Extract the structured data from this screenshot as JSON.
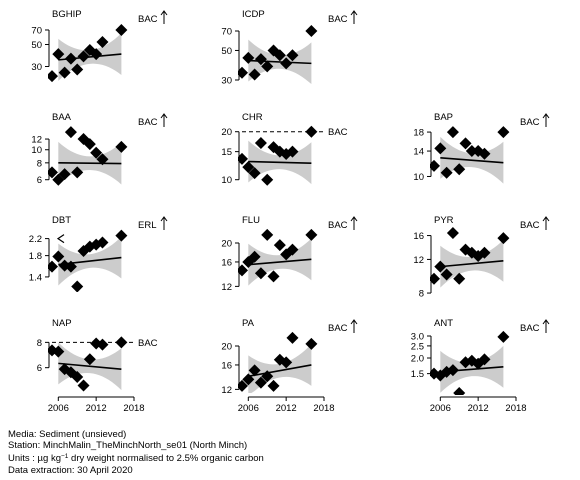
{
  "footer": {
    "media": "Media: Sediment (unsieved)",
    "station": "Station: MinchMalin_TheMinchNorth_se01 (North Minch)",
    "units_prefix": "Units : µg kg",
    "units_sup": "−1",
    "units_suffix": " dry weight normalised to 2.5% organic carbon",
    "extraction": "Data extraction: 30 April 2020"
  },
  "chart_data": [
    {
      "type": "scatter",
      "title": "BGHIP",
      "ylabel": "",
      "xlim": [
        2005,
        2018
      ],
      "ylim": [
        20,
        75
      ],
      "yticks": [
        30,
        50,
        70
      ],
      "log": true,
      "x": [
        2005,
        2006,
        2007,
        2008,
        2009,
        2010,
        2011,
        2012,
        2013,
        2016
      ],
      "y": [
        24,
        40,
        26,
        36,
        28,
        38,
        44,
        40,
        53,
        70
      ],
      "trend": [
        [
          2006,
          35
        ],
        [
          2016,
          40
        ]
      ],
      "threshold": {
        "label": "BAC",
        "value": 75,
        "line": false,
        "arrow": true
      },
      "xtick_labels": false
    },
    {
      "type": "scatter",
      "title": "ICDP",
      "ylabel": "",
      "xlim": [
        2005,
        2018
      ],
      "ylim": [
        28,
        75
      ],
      "yticks": [
        30,
        50,
        70
      ],
      "log": true,
      "x": [
        2005,
        2006,
        2007,
        2008,
        2009,
        2010,
        2011,
        2012,
        2013,
        2016
      ],
      "y": [
        34,
        44,
        33,
        43,
        38,
        50,
        46,
        40,
        46,
        70
      ],
      "trend": [
        [
          2006,
          42
        ],
        [
          2016,
          40
        ]
      ],
      "threshold": {
        "label": "BAC",
        "value": 75,
        "line": false,
        "arrow": true
      },
      "xtick_labels": false
    },
    {
      "type": "scatter",
      "title": "BAA",
      "ylabel": "",
      "xlim": [
        2005,
        2018
      ],
      "ylim": [
        5.3,
        14
      ],
      "yticks": [
        6,
        8,
        10,
        12
      ],
      "log": true,
      "x": [
        2005,
        2006,
        2007,
        2008,
        2009,
        2010,
        2011,
        2012,
        2013,
        2016
      ],
      "y": [
        6.8,
        6.0,
        6.6,
        13.5,
        6.8,
        12.0,
        11.0,
        9.5,
        8.5,
        10.5
      ],
      "trend": [
        [
          2006,
          8.0
        ],
        [
          2016,
          7.9
        ]
      ],
      "threshold": {
        "label": "BAC",
        "value": 14,
        "line": false,
        "arrow": true
      },
      "xtick_labels": false
    },
    {
      "type": "scatter",
      "title": "CHR",
      "ylabel": "",
      "xlim": [
        2005,
        2018
      ],
      "ylim": [
        9,
        20.5
      ],
      "yticks": [
        10,
        15,
        20
      ],
      "log": true,
      "x": [
        2005,
        2006,
        2007,
        2008,
        2009,
        2010,
        2011,
        2012,
        2013,
        2016
      ],
      "y": [
        13.5,
        12.0,
        11.0,
        17.0,
        10.0,
        16.0,
        15.0,
        14.5,
        15.0,
        20.0
      ],
      "trend": [
        [
          2006,
          13.0
        ],
        [
          2016,
          12.7
        ]
      ],
      "threshold": {
        "label": "BAC",
        "value": 20,
        "line": true,
        "arrow": false
      },
      "xtick_labels": false
    },
    {
      "type": "scatter",
      "title": "BAP",
      "ylabel": "",
      "xlim": [
        2005,
        2018
      ],
      "ylim": [
        8.7,
        18.5
      ],
      "yticks": [
        10,
        14,
        18
      ],
      "log": true,
      "x": [
        2005,
        2006,
        2007,
        2008,
        2009,
        2010,
        2011,
        2012,
        2013,
        2016
      ],
      "y": [
        11.5,
        14.5,
        10.5,
        18.0,
        11.0,
        15.5,
        14.0,
        14.0,
        13.5,
        18.0
      ],
      "trend": [
        [
          2006,
          12.8
        ],
        [
          2016,
          12.0
        ]
      ],
      "threshold": {
        "label": "BAC",
        "value": 18.5,
        "line": false,
        "arrow": true
      },
      "xtick_labels": false
    },
    {
      "type": "scatter",
      "title": "DBT",
      "ylabel": "",
      "xlim": [
        2005,
        2018
      ],
      "ylim": [
        1.2,
        2.35
      ],
      "yticks": [
        1.4,
        1.8,
        2.2
      ],
      "log": true,
      "x": [
        2005,
        2006,
        2007,
        2008,
        2009,
        2010,
        2011,
        2012,
        2013,
        2016
      ],
      "y": [
        1.58,
        1.78,
        1.6,
        1.58,
        1.25,
        1.9,
        2.0,
        2.05,
        2.1,
        2.28
      ],
      "trend": [
        [
          2006,
          1.62
        ],
        [
          2016,
          1.76
        ]
      ],
      "threshold": {
        "label": "ERL",
        "value": 2.35,
        "line": false,
        "arrow": true
      },
      "less_than_marker_at": 2.2,
      "xtick_labels": false
    },
    {
      "type": "scatter",
      "title": "FLU",
      "ylabel": "",
      "xlim": [
        2005,
        2018
      ],
      "ylim": [
        11.5,
        22.5
      ],
      "yticks": [
        12,
        16,
        20
      ],
      "log": true,
      "x": [
        2005,
        2006,
        2007,
        2008,
        2009,
        2010,
        2011,
        2012,
        2013,
        2016
      ],
      "y": [
        14.5,
        16.0,
        17.0,
        14.0,
        22.0,
        13.5,
        19.5,
        17.5,
        18.5,
        22.0
      ],
      "trend": [
        [
          2006,
          15.5
        ],
        [
          2016,
          16.5
        ]
      ],
      "threshold": {
        "label": "BAC",
        "value": 22.5,
        "line": false,
        "arrow": true
      },
      "xtick_labels": false
    },
    {
      "type": "scatter",
      "title": "PYR",
      "ylabel": "",
      "xlim": [
        2005,
        2018
      ],
      "ylim": [
        8.3,
        16.5
      ],
      "yticks": [
        8,
        12,
        16
      ],
      "log": true,
      "x": [
        2005,
        2006,
        2007,
        2008,
        2009,
        2010,
        2011,
        2012,
        2013,
        2016
      ],
      "y": [
        9.5,
        11.0,
        10.0,
        16.5,
        9.5,
        13.5,
        13.0,
        12.5,
        13.0,
        15.5
      ],
      "trend": [
        [
          2006,
          11.0
        ],
        [
          2016,
          11.8
        ]
      ],
      "threshold": {
        "label": "BAC",
        "value": 16.5,
        "line": false,
        "arrow": true
      },
      "xtick_labels": false
    },
    {
      "type": "scatter",
      "title": "NAP",
      "ylabel": "",
      "xlim": [
        2005,
        2018
      ],
      "ylim": [
        4.5,
        8.6
      ],
      "yticks": [
        6,
        8
      ],
      "log": true,
      "x": [
        2005,
        2006,
        2007,
        2008,
        2009,
        2010,
        2011,
        2012,
        2013,
        2016
      ],
      "y": [
        7.3,
        7.2,
        5.9,
        5.7,
        5.4,
        4.9,
        6.6,
        7.9,
        7.8,
        8.0
      ],
      "trend": [
        [
          2006,
          6.3
        ],
        [
          2016,
          5.9
        ]
      ],
      "threshold": {
        "label": "BAC",
        "value": 8.0,
        "line": true,
        "arrow": false
      },
      "xtick_labels": true
    },
    {
      "type": "scatter",
      "title": "PA",
      "ylabel": "",
      "xlim": [
        2005,
        2018
      ],
      "ylim": [
        11.5,
        22.5
      ],
      "yticks": [
        12,
        16,
        20
      ],
      "log": true,
      "x": [
        2005,
        2006,
        2007,
        2008,
        2009,
        2010,
        2011,
        2012,
        2013,
        2016
      ],
      "y": [
        12.5,
        13.5,
        15.0,
        13.0,
        14.0,
        12.5,
        17.0,
        16.5,
        22.0,
        20.5
      ],
      "trend": [
        [
          2006,
          14.0
        ],
        [
          2016,
          16.0
        ]
      ],
      "threshold": {
        "label": "BAC",
        "value": 22.5,
        "line": false,
        "arrow": true
      },
      "xtick_labels": true
    },
    {
      "type": "scatter",
      "title": "ANT",
      "ylabel": "",
      "xlim": [
        2005,
        2018
      ],
      "ylim": [
        1.05,
        3.0
      ],
      "yticks": [
        1.5,
        2.0,
        2.5,
        3.0
      ],
      "log": true,
      "x": [
        2005,
        2006,
        2007,
        2008,
        2009,
        2010,
        2011,
        2012,
        2013,
        2016
      ],
      "y": [
        1.5,
        1.45,
        1.55,
        1.6,
        1.05,
        1.85,
        1.9,
        1.8,
        1.95,
        2.95
      ],
      "trend": [
        [
          2006,
          1.55
        ],
        [
          2016,
          1.7
        ]
      ],
      "threshold": {
        "label": "BAC",
        "value": 3.0,
        "line": false,
        "arrow": true
      },
      "xtick_labels": true
    }
  ],
  "xtick_values": [
    2006,
    2012,
    2018
  ]
}
